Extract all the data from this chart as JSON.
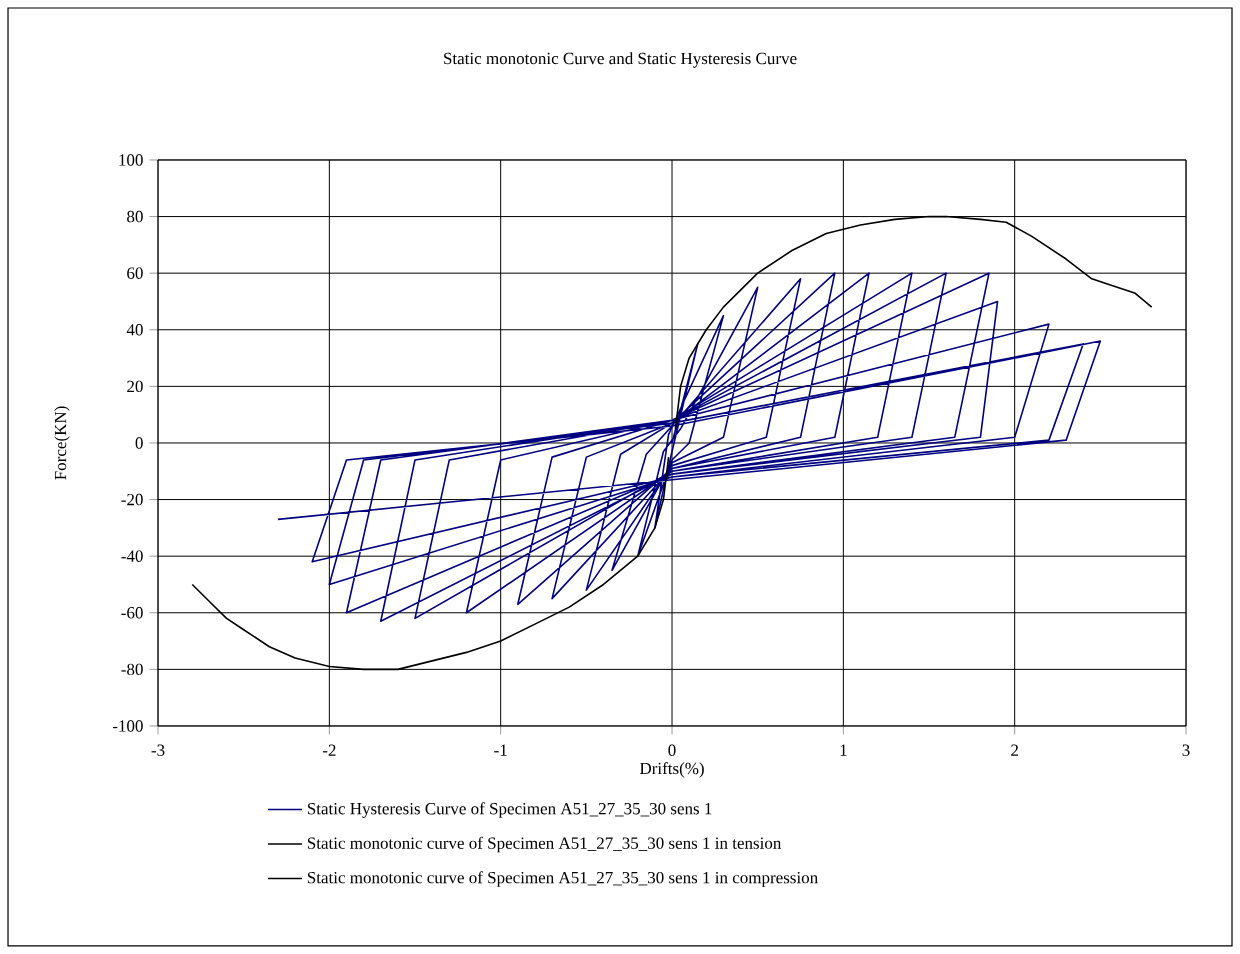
{
  "chart_data": {
    "type": "line",
    "title": "Static monotonic Curve and Static Hysteresis Curve",
    "xlabel": "Drifts(%)",
    "ylabel": "Force(KN)",
    "xlim": [
      -3,
      3
    ],
    "xticks": [
      -3,
      -2,
      -1,
      0,
      1,
      2,
      3
    ],
    "ylim": [
      -100,
      100
    ],
    "yticks": [
      -100,
      -80,
      -60,
      -40,
      -20,
      0,
      20,
      40,
      60,
      80,
      100
    ],
    "grid": true,
    "legend": "bottom",
    "marker": "none",
    "line_style": "solid",
    "series": [
      {
        "name": "Static Hysteresis Curve of Specimen A51_27_35_30 sens 1",
        "color": "#000080",
        "x": [
          0,
          0.15,
          0.0,
          -0.1,
          -0.02,
          0.3,
          0.1,
          0,
          -0.2,
          -0.05,
          0.05,
          0.5,
          0.3,
          0,
          -0.35,
          -0.15,
          0,
          0.75,
          0.55,
          0,
          -0.5,
          -0.3,
          0,
          0.95,
          0.75,
          0,
          -0.7,
          -0.5,
          0,
          1.15,
          0.95,
          0,
          -0.9,
          -0.7,
          0,
          1.4,
          1.2,
          0,
          -1.2,
          -1.0,
          0,
          1.6,
          1.4,
          0,
          -1.5,
          -1.3,
          0,
          1.85,
          1.65,
          0,
          -1.7,
          -1.5,
          0,
          1.9,
          1.8,
          0,
          -1.9,
          -1.7,
          0,
          2.2,
          2.0,
          0,
          -2.0,
          -1.8,
          0,
          2.4,
          2.2,
          0,
          -2.1,
          -1.9,
          0,
          2.5,
          2.3,
          0,
          -2.3
        ],
        "values": [
          0,
          35,
          -3,
          -30,
          3,
          45,
          0,
          -6,
          -40,
          -3,
          5,
          55,
          2,
          -7,
          -45,
          -4,
          6,
          58,
          2,
          -8,
          -52,
          -4,
          7,
          60,
          2,
          -9,
          -55,
          -5,
          7,
          60,
          2,
          -9,
          -57,
          -5,
          8,
          60,
          2,
          -10,
          -60,
          -6,
          8,
          60,
          2,
          -10,
          -62,
          -6,
          8,
          60,
          2,
          -11,
          -63,
          -6,
          8,
          50,
          2,
          -11,
          -60,
          -6,
          8,
          42,
          2,
          -12,
          -50,
          -6,
          7,
          35,
          1,
          -12,
          -42,
          -6,
          6,
          36,
          1,
          -13,
          -27
        ]
      },
      {
        "name": "Static monotonic curve of Specimen A51_27_35_30 sens 1 in tension",
        "color": "#000000",
        "x": [
          0.02,
          0.05,
          0.1,
          0.2,
          0.3,
          0.5,
          0.7,
          0.9,
          1.1,
          1.3,
          1.5,
          1.6,
          1.8,
          1.95,
          2.1,
          2.3,
          2.45,
          2.55,
          2.7,
          2.8
        ],
        "values": [
          5,
          20,
          30,
          40,
          48,
          60,
          68,
          74,
          77,
          79,
          80,
          80,
          79,
          78,
          73,
          65,
          58,
          56,
          53,
          48
        ]
      },
      {
        "name": "Static monotonic curve of Specimen A51_27_35_30 sens 1 in compression",
        "color": "#000000",
        "x": [
          -0.02,
          -0.05,
          -0.1,
          -0.2,
          -0.4,
          -0.6,
          -0.8,
          -1.0,
          -1.2,
          -1.4,
          -1.6,
          -1.8,
          -2.0,
          -2.2,
          -2.35,
          -2.5,
          -2.6,
          -2.7,
          -2.8
        ],
        "values": [
          -5,
          -20,
          -30,
          -40,
          -50,
          -58,
          -64,
          -70,
          -74,
          -77,
          -80,
          -80,
          -79,
          -76,
          -72,
          -66,
          -62,
          -56,
          -50
        ]
      }
    ]
  }
}
